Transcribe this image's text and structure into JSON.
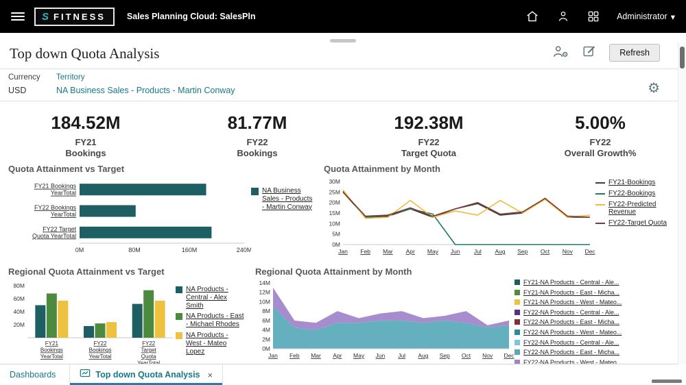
{
  "header": {
    "logo_text": "FITNESS",
    "logo_mark": "S",
    "app_title": "Sales Planning Cloud: SalesPln",
    "user_label": "Administrator"
  },
  "icons": {
    "caret": "▾",
    "gear": "⚙",
    "close": "×"
  },
  "colors": {
    "accent": "#157a87",
    "tab_indicator": "#2a7ab0"
  },
  "toolbar": {
    "page_title": "Top down Quota Analysis",
    "refresh_label": "Refresh"
  },
  "pov": {
    "currency_label": "Currency",
    "currency_value": "USD",
    "territory_label": "Territory",
    "territory_value": "NA Business Sales - Products - Martin Conway"
  },
  "kpis": [
    {
      "value": "184.52M",
      "period": "FY21",
      "measure": "Bookings"
    },
    {
      "value": "81.77M",
      "period": "FY22",
      "measure": "Bookings"
    },
    {
      "value": "192.38M",
      "period": "FY22",
      "measure": "Target Quota"
    },
    {
      "value": "5.00%",
      "period": "FY22",
      "measure": "Overall Growth%"
    }
  ],
  "footer": {
    "dashboards_label": "Dashboards",
    "tab_label": "Top down Quota Analysis"
  },
  "chart_data": [
    {
      "id": "quota-attainment-vs-target",
      "type": "bar",
      "orientation": "horizontal",
      "title": "Quota Attainment vs Target",
      "categories": [
        [
          "FY21 Bookings",
          "YearTotal"
        ],
        [
          "FY22 Bookings",
          "YearTotal"
        ],
        [
          "FY22 Target",
          "Quota YearTotal"
        ]
      ],
      "values": [
        184.52,
        81.77,
        192.38
      ],
      "bar_color": "#1e5f63",
      "xlim": [
        0,
        240
      ],
      "xticks": [
        0,
        80,
        160,
        240
      ],
      "unit": "M",
      "grid": false,
      "legend_position": "right",
      "legend": [
        {
          "label": "NA Business Sales - Products - Martin Conway",
          "color": "#1e5f63"
        }
      ]
    },
    {
      "id": "quota-attainment-by-month",
      "type": "line",
      "title": "Quota Attainment by Month",
      "x": [
        "Jan",
        "Feb",
        "Mar",
        "Apr",
        "May",
        "Jun",
        "Jul",
        "Aug",
        "Sep",
        "Oct",
        "Nov",
        "Dec"
      ],
      "ylim": [
        0,
        30
      ],
      "yticks": [
        0,
        5,
        10,
        15,
        20,
        25,
        30
      ],
      "unit": "M",
      "grid": false,
      "legend_position": "right",
      "series": [
        {
          "name": "FY21-Bookings",
          "color": "#383d45",
          "values": [
            25,
            13,
            13.5,
            17,
            13,
            17,
            19.5,
            14,
            15,
            22,
            13,
            13
          ]
        },
        {
          "name": "FY22-Bookings",
          "color": "#1d7a68",
          "values": [
            25.5,
            13,
            14,
            17,
            14.5,
            0,
            0,
            0,
            0,
            0,
            0,
            0
          ]
        },
        {
          "name": "FY22-Predicted Revenue",
          "color": "#f0bb41",
          "values": [
            26,
            12.5,
            13,
            21,
            13,
            16,
            14,
            21,
            15,
            21.5,
            13,
            14
          ]
        },
        {
          "name": "FY22-Target Quota",
          "color": "#7c3b33",
          "values": [
            25,
            13.5,
            14,
            17.5,
            13.5,
            17,
            20,
            14.5,
            15.5,
            22,
            13.5,
            13
          ]
        }
      ]
    },
    {
      "id": "regional-quota-attainment-vs-target",
      "type": "bar",
      "orientation": "vertical",
      "grouped": true,
      "title": "Regional Quota Attainment vs Target",
      "categories": [
        [
          "FY21",
          "Bookings",
          "YearTotal"
        ],
        [
          "FY22",
          "Bookings",
          "YearTotal"
        ],
        [
          "FY22",
          "Target",
          "Quota",
          "YearTotal"
        ]
      ],
      "ylim": [
        0,
        80
      ],
      "yticks": [
        20,
        40,
        60,
        80
      ],
      "unit": "M",
      "grid": false,
      "legend_position": "right",
      "series": [
        {
          "name": "NA Products - Central - Alex Smith",
          "color": "#1e5f63",
          "values": [
            50,
            18,
            52
          ]
        },
        {
          "name": "NA Products - East - Michael Rhodes",
          "color": "#4c8b3f",
          "values": [
            68,
            22,
            73
          ]
        },
        {
          "name": "NA Products - West - Mateo Lopez",
          "color": "#eec23f",
          "values": [
            57,
            24,
            57
          ]
        }
      ]
    },
    {
      "id": "regional-quota-attainment-by-month",
      "type": "area",
      "stacked": true,
      "title": "Regional Quota Attainment by Month",
      "x": [
        "Jan",
        "Feb",
        "Mar",
        "Apr",
        "May",
        "Jun",
        "Jul",
        "Aug",
        "Sep",
        "Oct",
        "Nov",
        "Dec"
      ],
      "ylim": [
        0,
        14
      ],
      "yticks": [
        0,
        2,
        4,
        6,
        8,
        10,
        12,
        14
      ],
      "unit": "M",
      "grid": false,
      "legend_position": "right",
      "series": [
        {
          "name": "FY22-NA Products - East - Micha...",
          "color": "#57a9b8",
          "values": [
            9,
            4.5,
            4,
            5.5,
            5.5,
            6,
            6,
            5.5,
            6,
            5.5,
            4.5,
            5
          ]
        },
        {
          "name": "FY22-NA Products - West - Mateo...",
          "color": "#a083c9",
          "values": [
            4,
            1.5,
            1.5,
            2.5,
            1,
            1.5,
            2,
            1,
            1,
            2.5,
            0.5,
            1
          ]
        }
      ],
      "legend": [
        {
          "label": "FY21-NA Products - Central - Ale...",
          "color": "#1e5f63"
        },
        {
          "label": "FY21-NA Products - East - Micha...",
          "color": "#4c8b3f"
        },
        {
          "label": "FY21-NA Products - West - Mateo...",
          "color": "#eec23f"
        },
        {
          "label": "FY22-NA Products - Central - Ale...",
          "color": "#5b2d7e"
        },
        {
          "label": "FY22-NA Products - East - Micha...",
          "color": "#7e2f3d"
        },
        {
          "label": "FY22-NA Products - West - Mateo...",
          "color": "#2b8c98"
        },
        {
          "label": "FY22-NA Products - Central - Ale...",
          "color": "#7fc4dd"
        },
        {
          "label": "FY22-NA Products - East - Micha...",
          "color": "#57a9b8"
        },
        {
          "label": "FY22-NA Products - West - Mateo...",
          "color": "#a083c9"
        }
      ]
    }
  ]
}
